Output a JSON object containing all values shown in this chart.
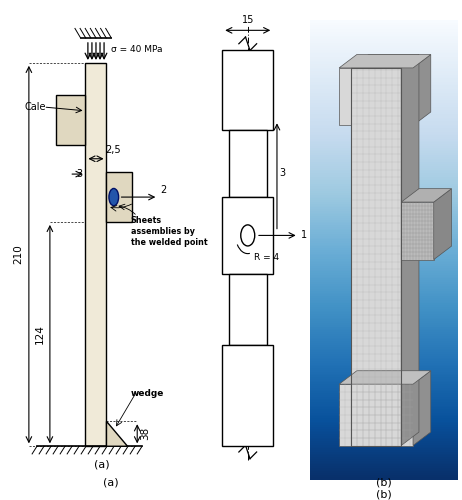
{
  "bg_color": "#ffffff",
  "dc": "#000000",
  "beam_fill": "#f0ead8",
  "plate_fill": "#e0d8c0",
  "weld_fill": "#2255aa",
  "sigma": "σ = 40 MPa",
  "label_a": "(a)",
  "label_b": "(b)",
  "dim_25": "2,5",
  "dim_3": "3",
  "dim_2": "2",
  "dim_210": "210",
  "dim_124": "124",
  "dim_38": "38",
  "dim_15": "15",
  "dim_3v": "3",
  "dim_R4": "R = 4",
  "dim_1": "1",
  "sheets_text": "Sheets\nassemblies by\nthe welded point",
  "wedge_text": "wedge",
  "cale_text": "Cale"
}
